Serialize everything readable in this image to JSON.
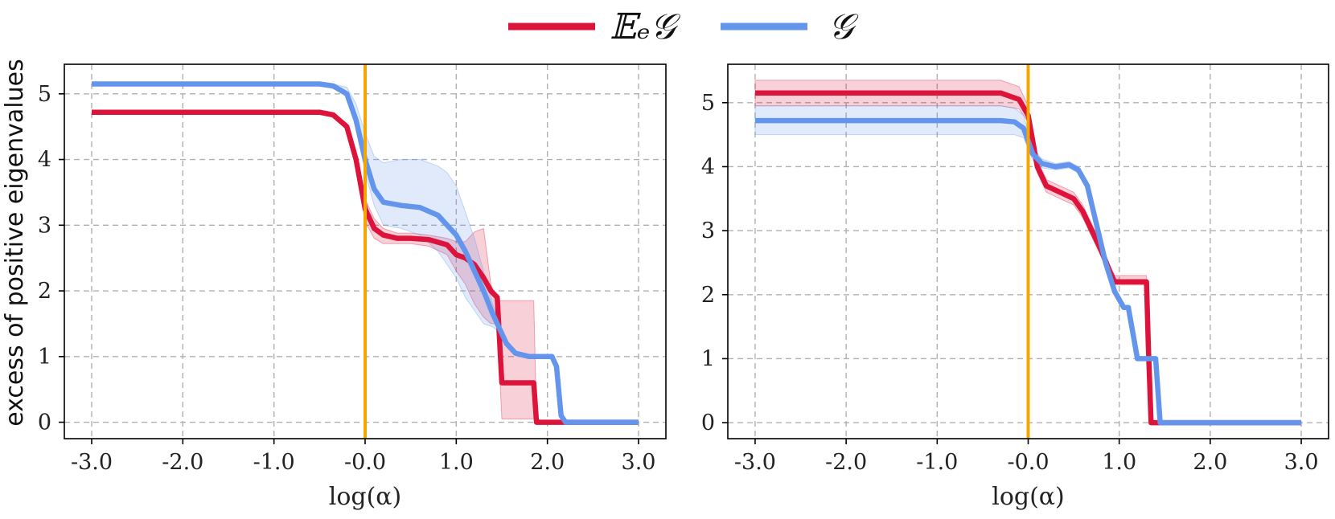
{
  "legend": {
    "items": [
      {
        "label": "𝔼ₑ𝒢",
        "color": "#dc143c"
      },
      {
        "label": "𝒢",
        "color": "#6495ed"
      }
    ]
  },
  "y_axis_label": "excess of positive eigenvalues",
  "chart_data": [
    {
      "type": "line",
      "title": "",
      "xlabel": "log(α)",
      "ylabel": "excess of positive eigenvalues",
      "xlim": [
        -3.3,
        3.3
      ],
      "ylim": [
        -0.25,
        5.45
      ],
      "xticks": [
        -3,
        -2,
        -1,
        0,
        1,
        2,
        3
      ],
      "xtick_labels": [
        "-3.0",
        "-2.0",
        "-1.0",
        "-0.0",
        "1.0",
        "2.0",
        "3.0"
      ],
      "yticks": [
        0,
        1,
        2,
        3,
        4,
        5
      ],
      "ytick_labels": [
        "0",
        "1",
        "2",
        "3",
        "4",
        "5"
      ],
      "grid": true,
      "vline": {
        "x": 0,
        "color": "#f5a500"
      },
      "series": [
        {
          "name": "𝔼ₑ𝒢",
          "color": "#dc143c",
          "x": [
            -3.0,
            -0.5,
            -0.35,
            -0.2,
            -0.1,
            0.0,
            0.1,
            0.2,
            0.35,
            0.5,
            0.7,
            0.9,
            1.0,
            1.1,
            1.2,
            1.3,
            1.38,
            1.45,
            1.5,
            1.55,
            1.6,
            1.85,
            1.88,
            2.0,
            2.2,
            3.0
          ],
          "y": [
            4.72,
            4.72,
            4.68,
            4.5,
            4.0,
            3.25,
            2.95,
            2.85,
            2.8,
            2.8,
            2.78,
            2.7,
            2.55,
            2.5,
            2.4,
            2.2,
            2.0,
            1.9,
            0.6,
            0.6,
            0.6,
            0.6,
            0.0,
            0.0,
            0.0,
            0.0
          ],
          "lower": [
            4.72,
            4.72,
            4.66,
            4.45,
            3.9,
            3.05,
            2.8,
            2.72,
            2.72,
            2.72,
            2.68,
            2.55,
            2.3,
            2.1,
            1.8,
            1.6,
            1.5,
            1.5,
            0.05,
            0.05,
            0.05,
            0.05,
            0.05,
            0.0,
            0.0,
            0.0
          ],
          "upper": [
            4.72,
            4.72,
            4.7,
            4.55,
            4.1,
            3.4,
            3.1,
            2.95,
            2.88,
            2.88,
            2.85,
            2.8,
            2.75,
            2.75,
            2.9,
            2.95,
            2.1,
            1.85,
            1.85,
            1.85,
            1.85,
            1.85,
            0.05,
            0.0,
            0.0,
            0.0
          ]
        },
        {
          "name": "𝒢",
          "color": "#6495ed",
          "x": [
            -3.0,
            -0.5,
            -0.35,
            -0.2,
            -0.1,
            0.0,
            0.1,
            0.2,
            0.4,
            0.6,
            0.8,
            0.9,
            1.0,
            1.1,
            1.2,
            1.3,
            1.4,
            1.5,
            1.55,
            1.65,
            1.8,
            2.05,
            2.1,
            2.15,
            2.2,
            3.0
          ],
          "y": [
            5.15,
            5.15,
            5.12,
            5.0,
            4.6,
            4.0,
            3.55,
            3.35,
            3.3,
            3.27,
            3.15,
            3.0,
            2.85,
            2.6,
            2.3,
            2.0,
            1.65,
            1.35,
            1.2,
            1.05,
            1.0,
            1.0,
            0.85,
            0.1,
            0.0,
            0.0
          ],
          "lower": [
            5.15,
            5.15,
            5.1,
            4.95,
            4.5,
            3.8,
            3.3,
            3.0,
            2.95,
            2.85,
            2.6,
            2.4,
            2.2,
            1.9,
            1.7,
            1.5,
            1.45,
            1.35,
            1.2,
            1.05,
            1.0,
            1.0,
            0.85,
            0.1,
            0.0,
            0.0
          ],
          "upper": [
            5.15,
            5.15,
            5.15,
            5.1,
            4.85,
            4.4,
            4.05,
            3.95,
            4.0,
            4.0,
            3.9,
            3.8,
            3.6,
            3.2,
            2.8,
            2.3,
            1.8,
            1.4,
            1.2,
            1.05,
            1.0,
            1.0,
            0.85,
            0.1,
            0.0,
            0.0
          ]
        }
      ]
    },
    {
      "type": "line",
      "title": "",
      "xlabel": "log(α)",
      "ylabel": "",
      "xlim": [
        -3.3,
        3.3
      ],
      "ylim": [
        -0.25,
        5.6
      ],
      "xticks": [
        -3,
        -2,
        -1,
        0,
        1,
        2,
        3
      ],
      "xtick_labels": [
        "-3.0",
        "-2.0",
        "-1.0",
        "-0.0",
        "1.0",
        "2.0",
        "3.0"
      ],
      "yticks": [
        0,
        1,
        2,
        3,
        4,
        5
      ],
      "ytick_labels": [
        "0",
        "1",
        "2",
        "3",
        "4",
        "5"
      ],
      "grid": true,
      "vline": {
        "x": 0,
        "color": "#f5a500"
      },
      "series": [
        {
          "name": "𝔼ₑ𝒢",
          "color": "#dc143c",
          "x": [
            -3.0,
            -0.3,
            -0.1,
            0.0,
            0.05,
            0.1,
            0.2,
            0.35,
            0.5,
            0.6,
            0.7,
            0.8,
            0.9,
            0.95,
            1.0,
            1.3,
            1.32,
            1.35,
            1.5,
            3.0
          ],
          "y": [
            5.15,
            5.15,
            5.05,
            4.8,
            4.4,
            4.0,
            3.7,
            3.6,
            3.5,
            3.3,
            3.0,
            2.7,
            2.35,
            2.2,
            2.2,
            2.2,
            1.2,
            0.0,
            0.0,
            0.0
          ],
          "lower": [
            4.95,
            4.95,
            4.9,
            4.7,
            4.3,
            3.9,
            3.6,
            3.5,
            3.4,
            3.2,
            2.9,
            2.6,
            2.25,
            2.15,
            2.15,
            2.15,
            1.2,
            0.0,
            0.0,
            0.0
          ],
          "upper": [
            5.35,
            5.35,
            5.25,
            4.95,
            4.5,
            4.1,
            3.8,
            3.7,
            3.6,
            3.4,
            3.1,
            2.8,
            2.45,
            2.3,
            2.3,
            2.3,
            1.2,
            0.0,
            0.0,
            0.0
          ]
        },
        {
          "name": "𝒢",
          "color": "#6495ed",
          "x": [
            -3.0,
            -0.3,
            -0.15,
            -0.05,
            0.05,
            0.15,
            0.3,
            0.45,
            0.55,
            0.65,
            0.75,
            0.85,
            0.95,
            1.05,
            1.1,
            1.15,
            1.2,
            1.3,
            1.4,
            1.45,
            1.5,
            3.0
          ],
          "y": [
            4.72,
            4.72,
            4.7,
            4.6,
            4.2,
            4.05,
            4.0,
            4.03,
            3.95,
            3.7,
            3.1,
            2.5,
            2.05,
            1.8,
            1.8,
            1.4,
            1.0,
            1.0,
            1.0,
            0.0,
            0.0,
            0.0
          ],
          "lower": [
            4.5,
            4.5,
            4.5,
            4.45,
            4.1,
            3.98,
            3.95,
            3.98,
            3.9,
            3.65,
            3.05,
            2.45,
            2.0,
            1.8,
            1.8,
            1.4,
            1.0,
            1.0,
            1.0,
            0.0,
            0.0,
            0.0
          ],
          "upper": [
            4.95,
            4.95,
            4.92,
            4.8,
            4.3,
            4.12,
            4.05,
            4.08,
            4.0,
            3.75,
            3.15,
            2.55,
            2.1,
            1.8,
            1.8,
            1.4,
            1.0,
            1.0,
            1.0,
            0.0,
            0.0,
            0.0
          ]
        }
      ]
    }
  ]
}
